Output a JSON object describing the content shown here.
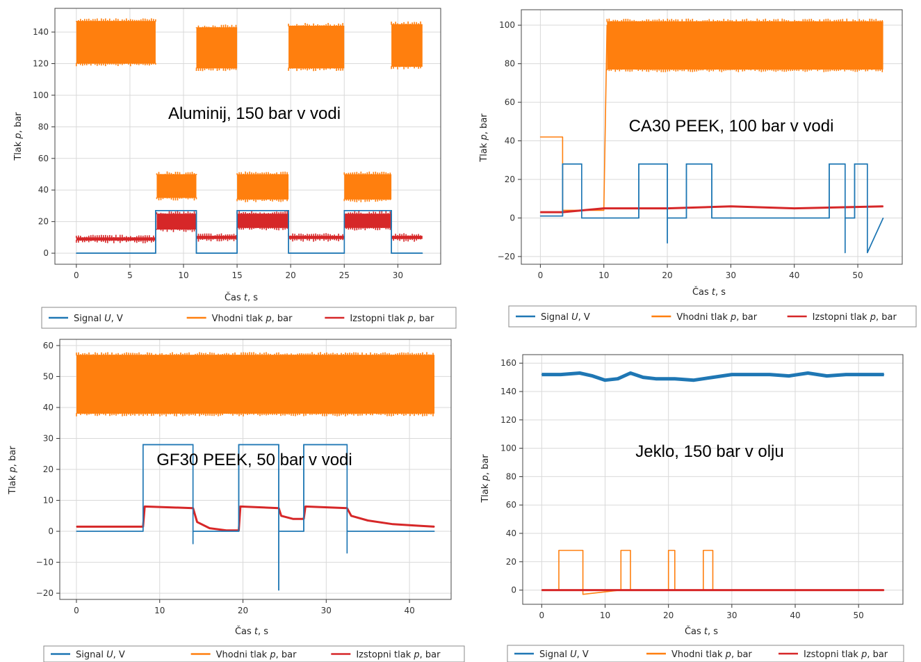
{
  "chart_data": [
    {
      "type": "line",
      "annotation": "Aluminij, 150 bar v vodi",
      "xlabel": "Čas t, s",
      "ylabel": "Tlak p, bar",
      "xlim": [
        -2,
        34
      ],
      "ylim": [
        -7,
        155
      ],
      "xticks": [
        0,
        5,
        10,
        15,
        20,
        25,
        30
      ],
      "yticks": [
        0,
        20,
        40,
        60,
        80,
        100,
        120,
        140
      ],
      "grid": true,
      "legend_placement": "below",
      "series": [
        {
          "name": "Signal U, V",
          "color": "#1f77b4",
          "x": [
            0,
            7.4,
            7.4,
            11.2,
            11.2,
            15.0,
            15.0,
            19.8,
            19.8,
            25.0,
            25.0,
            29.4,
            29.4,
            32.3
          ],
          "y": [
            0,
            0,
            27,
            27,
            0,
            0,
            27,
            27,
            0,
            0,
            27,
            27,
            0,
            0
          ]
        },
        {
          "name": "Vhodni tlak p, bar",
          "color": "#ff7f0e",
          "bands": [
            {
              "x0": 0,
              "x1": 7.4,
              "low": 120,
              "high": 147
            },
            {
              "x0": 7.5,
              "x1": 11.2,
              "low": 35,
              "high": 50
            },
            {
              "x0": 11.2,
              "x1": 15.0,
              "low": 117,
              "high": 143
            },
            {
              "x0": 15.0,
              "x1": 19.8,
              "low": 34,
              "high": 50
            },
            {
              "x0": 19.8,
              "x1": 25.0,
              "low": 117,
              "high": 144
            },
            {
              "x0": 25.0,
              "x1": 29.4,
              "low": 34,
              "high": 50
            },
            {
              "x0": 29.4,
              "x1": 32.3,
              "low": 118,
              "high": 145
            }
          ]
        },
        {
          "name": "Izstopni tlak p, bar",
          "color": "#d62728",
          "bands": [
            {
              "x0": 0,
              "x1": 7.4,
              "low": 8,
              "high": 10
            },
            {
              "x0": 7.5,
              "x1": 11.2,
              "low": 15,
              "high": 25
            },
            {
              "x0": 11.2,
              "x1": 15.0,
              "low": 9,
              "high": 11
            },
            {
              "x0": 15.0,
              "x1": 19.8,
              "low": 16,
              "high": 25
            },
            {
              "x0": 19.8,
              "x1": 25.0,
              "low": 9,
              "high": 11
            },
            {
              "x0": 25.0,
              "x1": 29.4,
              "low": 16,
              "high": 25
            },
            {
              "x0": 29.4,
              "x1": 32.3,
              "low": 9,
              "high": 11
            }
          ]
        }
      ]
    },
    {
      "type": "line",
      "annotation": "CA30 PEEK, 100 bar v vodi",
      "xlabel": "Čas t, s",
      "ylabel": "Tlak p, bar",
      "xlim": [
        -3,
        57
      ],
      "ylim": [
        -24,
        108
      ],
      "xticks": [
        0,
        10,
        20,
        30,
        40,
        50
      ],
      "yticks": [
        -20,
        0,
        20,
        40,
        60,
        80,
        100
      ],
      "grid": true,
      "legend_placement": "below",
      "series": [
        {
          "name": "Signal U, V",
          "color": "#1f77b4",
          "x": [
            0,
            3.5,
            3.5,
            6.5,
            6.5,
            15.5,
            15.5,
            20,
            20,
            20,
            23,
            23,
            27,
            27,
            45.5,
            45.5,
            48,
            48,
            48,
            49.5,
            49.5,
            51.5,
            51.5,
            54
          ],
          "y": [
            1,
            1,
            28,
            28,
            0,
            0,
            28,
            28,
            -13,
            0,
            0,
            28,
            28,
            0,
            0,
            28,
            28,
            -18,
            0,
            0,
            28,
            28,
            -18,
            0
          ]
        },
        {
          "name": "Vhodni tlak p, bar",
          "color": "#ff7f0e",
          "x": [
            0,
            3.5,
            3.5,
            10,
            10.5
          ],
          "y": [
            42,
            42,
            4,
            4,
            100
          ],
          "bands": [
            {
              "x0": 10.5,
              "x1": 54,
              "low": 77,
              "high": 102
            }
          ]
        },
        {
          "name": "Izstopni tlak p, bar",
          "color": "#d62728",
          "x": [
            0,
            3.5,
            10,
            20,
            30,
            40,
            54
          ],
          "y": [
            3,
            3,
            5,
            5,
            6,
            5,
            6
          ]
        }
      ]
    },
    {
      "type": "line",
      "annotation": "GF30 PEEK, 50 bar v vodi",
      "xlabel": "Čas t, s",
      "ylabel": "Tlak p, bar",
      "xlim": [
        -2,
        45
      ],
      "ylim": [
        -22,
        62
      ],
      "xticks": [
        0,
        10,
        20,
        30,
        40
      ],
      "yticks": [
        -20,
        -10,
        0,
        10,
        20,
        30,
        40,
        50,
        60
      ],
      "grid": true,
      "legend_placement": "below",
      "series": [
        {
          "name": "Signal U, V",
          "color": "#1f77b4",
          "x": [
            0,
            8,
            8,
            14,
            14,
            14,
            19.5,
            19.5,
            24.3,
            24.3,
            24.3,
            27.3,
            27.3,
            32.5,
            32.5,
            32.5,
            43
          ],
          "y": [
            0,
            0,
            28,
            28,
            -4,
            0,
            0,
            28,
            28,
            -19,
            0,
            0,
            28,
            28,
            -7,
            0,
            0
          ]
        },
        {
          "name": "Vhodni tlak p, bar",
          "color": "#ff7f0e",
          "bands": [
            {
              "x0": 0,
              "x1": 43,
              "low": 38,
              "high": 57
            }
          ]
        },
        {
          "name": "Izstopni tlak p, bar",
          "color": "#d62728",
          "x": [
            0,
            8,
            8.2,
            14,
            14.5,
            16,
            18,
            19.5,
            19.7,
            24.3,
            24.6,
            26,
            27.3,
            27.5,
            32.5,
            33,
            35,
            38,
            41,
            43
          ],
          "y": [
            1.5,
            1.5,
            8,
            7.5,
            3,
            1,
            0.3,
            0.3,
            8,
            7.5,
            5,
            4,
            4,
            8,
            7.5,
            5,
            3.5,
            2.3,
            1.8,
            1.5
          ]
        }
      ]
    },
    {
      "type": "line",
      "annotation": "Jeklo, 150 bar v olju",
      "xlabel": "Čas t, s",
      "ylabel": "Tlak p, bar",
      "xlim": [
        -3,
        57
      ],
      "ylim": [
        -10,
        166
      ],
      "xticks": [
        0,
        10,
        20,
        30,
        40,
        50
      ],
      "yticks": [
        0,
        20,
        40,
        60,
        80,
        100,
        120,
        140,
        160
      ],
      "grid": true,
      "legend_placement": "below",
      "series": [
        {
          "name": "Signal U, V",
          "color": "#1f77b4",
          "x": [
            0,
            3,
            6,
            8,
            10,
            12,
            14,
            16,
            18,
            21,
            24,
            27,
            30,
            33,
            36,
            39,
            42,
            45,
            48,
            51,
            54
          ],
          "y": [
            152,
            152,
            153,
            151,
            148,
            149,
            153,
            150,
            149,
            149,
            148,
            150,
            152,
            152,
            152,
            151,
            153,
            151,
            152,
            152,
            152
          ]
        },
        {
          "name": "Vhodni tlak p, bar",
          "color": "#ff7f0e",
          "x": [
            0,
            2.7,
            2.7,
            6.5,
            6.5,
            12.5,
            12.5,
            14,
            14,
            20,
            20,
            21,
            21,
            25.5,
            25.5,
            27,
            27,
            54
          ],
          "y": [
            0,
            0,
            28,
            28,
            -3,
            0,
            28,
            28,
            0,
            0,
            28,
            28,
            0,
            0,
            28,
            28,
            0,
            0
          ]
        },
        {
          "name": "Izstopni tlak p, bar",
          "color": "#d62728",
          "x": [
            0,
            54
          ],
          "y": [
            0,
            0
          ]
        }
      ]
    }
  ]
}
